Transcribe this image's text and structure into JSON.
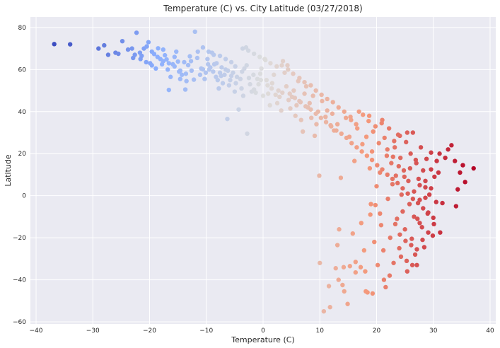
{
  "chart_data": {
    "type": "scatter",
    "title": "Temperature (C) vs. City Latitude (03/27/2018)",
    "xlabel": "Temperature (C)",
    "ylabel": "Latitude",
    "xlim": [
      -41,
      41
    ],
    "ylim": [
      -61,
      85
    ],
    "x_ticks": [
      -40,
      -30,
      -20,
      -10,
      0,
      10,
      20,
      30,
      40
    ],
    "y_ticks": [
      -60,
      -40,
      -20,
      0,
      20,
      40,
      60,
      80
    ],
    "grid": true,
    "colormap": "coolwarm",
    "background": "#eaeaf2",
    "grid_color": "#ffffff",
    "points": [
      [
        -36.8,
        72.1
      ],
      [
        -34,
        72
      ],
      [
        -29,
        70
      ],
      [
        -28,
        71.5
      ],
      [
        -27.3,
        67
      ],
      [
        -26,
        68
      ],
      [
        -25.5,
        67.5
      ],
      [
        -24.8,
        73.5
      ],
      [
        -23.8,
        69.5
      ],
      [
        -23.1,
        70
      ],
      [
        -22.9,
        65.5
      ],
      [
        -22.3,
        77.5
      ],
      [
        -21.7,
        68
      ],
      [
        -21.4,
        66.5
      ],
      [
        -21,
        70
      ],
      [
        -20.5,
        71
      ],
      [
        -20.2,
        73
      ],
      [
        -19.9,
        63
      ],
      [
        -19.6,
        68.5
      ],
      [
        -19.2,
        67.4
      ],
      [
        -18.9,
        60.5
      ],
      [
        -18.5,
        70.1
      ],
      [
        -18.1,
        65
      ],
      [
        -17.8,
        62.5
      ],
      [
        -17.6,
        69.5
      ],
      [
        -17.3,
        66.8
      ],
      [
        -17,
        64.8
      ],
      [
        -16.8,
        60
      ],
      [
        -16.6,
        50.3
      ],
      [
        -16.3,
        56.5
      ],
      [
        -15.9,
        62.5
      ],
      [
        -15.6,
        61.5
      ],
      [
        -15.3,
        68.5
      ],
      [
        -15,
        63.8
      ],
      [
        -14.8,
        59
      ],
      [
        -14.6,
        55.5
      ],
      [
        -14.3,
        57.5
      ],
      [
        -13.9,
        63.5
      ],
      [
        -13.7,
        50.5
      ],
      [
        -13.5,
        54.5
      ],
      [
        -13.2,
        62.1
      ],
      [
        -12.9,
        66.3
      ],
      [
        -12.6,
        59.5
      ],
      [
        -12.2,
        55.2
      ],
      [
        -12,
        78
      ],
      [
        -11.5,
        68.5
      ],
      [
        -11.1,
        57.5
      ],
      [
        -10.9,
        60.5
      ],
      [
        -10.6,
        60.1
      ],
      [
        -10.3,
        55.5
      ],
      [
        -10.1,
        58.5
      ],
      [
        -9.8,
        65
      ],
      [
        -9.5,
        60
      ],
      [
        -9.3,
        61
      ],
      [
        -9,
        68
      ],
      [
        -8.8,
        59
      ],
      [
        -8.6,
        62.5
      ],
      [
        -8.3,
        56.5
      ],
      [
        -8,
        55
      ],
      [
        -7.8,
        51
      ],
      [
        -7.6,
        58.5
      ],
      [
        -7.3,
        61
      ],
      [
        -7.1,
        53.5
      ],
      [
        -6.8,
        57.5
      ],
      [
        -6.6,
        60
      ],
      [
        -6.3,
        36.5
      ],
      [
        -6,
        52.5
      ],
      [
        -5.8,
        55
      ],
      [
        -5.6,
        57
      ],
      [
        -5.3,
        58.5
      ],
      [
        -5,
        49.5
      ],
      [
        -4.8,
        53.5
      ],
      [
        -4.6,
        56.5
      ],
      [
        -4.3,
        41
      ],
      [
        -4,
        55.5
      ],
      [
        -3.8,
        51
      ],
      [
        -3.5,
        47.5
      ],
      [
        -3.3,
        60.5
      ],
      [
        -3,
        70.5
      ],
      [
        -2.8,
        29.5
      ],
      [
        -2.5,
        56
      ],
      [
        -2.3,
        53
      ],
      [
        -2,
        49.5
      ],
      [
        -1.6,
        50.5
      ],
      [
        -1.3,
        49
      ],
      [
        -1,
        55.5
      ],
      [
        -0.8,
        53
      ],
      [
        -0.5,
        58
      ],
      [
        -0.3,
        60.5
      ],
      [
        0,
        47.5
      ],
      [
        0.3,
        65
      ],
      [
        0.6,
        55
      ],
      [
        0.9,
        48.5
      ],
      [
        1.2,
        43
      ],
      [
        1.5,
        51
      ],
      [
        1.9,
        57.5
      ],
      [
        2.2,
        48
      ],
      [
        2.5,
        44
      ],
      [
        2.9,
        47
      ],
      [
        3.2,
        40.5
      ],
      [
        3.5,
        64
      ],
      [
        3.8,
        58.5
      ],
      [
        4.1,
        52
      ],
      [
        4.3,
        62
      ],
      [
        4.5,
        45.5
      ],
      [
        4.8,
        41.5
      ],
      [
        5.1,
        47
      ],
      [
        5.4,
        50
      ],
      [
        5.7,
        38
      ],
      [
        5.9,
        43
      ],
      [
        6.2,
        54.5
      ],
      [
        6.4,
        45
      ],
      [
        6.7,
        36
      ],
      [
        7,
        30.5
      ],
      [
        7.3,
        48.5
      ],
      [
        7.6,
        52
      ],
      [
        7.9,
        42
      ],
      [
        8.2,
        44
      ],
      [
        8.5,
        37
      ],
      [
        8.8,
        47.5
      ],
      [
        9.1,
        28.5
      ],
      [
        9.4,
        34
      ],
      [
        9.7,
        40
      ],
      [
        9.9,
        9.5
      ],
      [
        10,
        -32
      ],
      [
        10.4,
        45
      ],
      [
        10.7,
        -55
      ],
      [
        11,
        37.5
      ],
      [
        11.3,
        40.5
      ],
      [
        11.6,
        -43
      ],
      [
        11.9,
        33.5
      ],
      [
        12.2,
        39
      ],
      [
        12.5,
        31
      ],
      [
        12.8,
        -34.5
      ],
      [
        13.1,
        34
      ],
      [
        13.4,
        -16
      ],
      [
        13.7,
        8.5
      ],
      [
        14,
        -42.5
      ],
      [
        14.3,
        -45.5
      ],
      [
        14.6,
        37
      ],
      [
        14.9,
        -51.5
      ],
      [
        15.2,
        28
      ],
      [
        15.5,
        36
      ],
      [
        15.8,
        -18
      ],
      [
        16.1,
        16.5
      ],
      [
        16.3,
        -31.5
      ],
      [
        16.6,
        32
      ],
      [
        16.9,
        40
      ],
      [
        17.2,
        -34
      ],
      [
        17.5,
        24.5
      ],
      [
        17.8,
        -26
      ],
      [
        18,
        -36
      ],
      [
        18.2,
        28
      ],
      [
        18.4,
        -46
      ],
      [
        18.6,
        35.5
      ],
      [
        18.8,
        13
      ],
      [
        19,
        -4
      ],
      [
        19.2,
        21
      ],
      [
        19.4,
        30.5
      ],
      [
        19.6,
        -22
      ],
      [
        19.8,
        33
      ],
      [
        20,
        4.5
      ],
      [
        20.2,
        -33
      ],
      [
        20.4,
        25
      ],
      [
        20.6,
        11
      ],
      [
        20.8,
        -14
      ],
      [
        21,
        36
      ],
      [
        21.2,
        -26
      ],
      [
        21.4,
        27.5
      ],
      [
        21.6,
        -43.5
      ],
      [
        21.8,
        19
      ],
      [
        22,
        -1.5
      ],
      [
        22.2,
        32
      ],
      [
        22.4,
        -20
      ],
      [
        22.6,
        15.5
      ],
      [
        22.8,
        5.5
      ],
      [
        23,
        -32
      ],
      [
        23.2,
        23
      ],
      [
        23.4,
        9.5
      ],
      [
        23.6,
        -11
      ],
      [
        23.8,
        29
      ],
      [
        24,
        -25
      ],
      [
        24.2,
        18
      ],
      [
        24.4,
        0.5
      ],
      [
        24.6,
        -7.5
      ],
      [
        24.8,
        12
      ],
      [
        25,
        -16
      ],
      [
        25.2,
        25.5
      ],
      [
        25.4,
        -36
      ],
      [
        25.6,
        7
      ],
      [
        25.8,
        -4
      ],
      [
        26,
        20
      ],
      [
        26.2,
        -20.5
      ],
      [
        26.4,
        30
      ],
      [
        26.6,
        2
      ],
      [
        26.8,
        -28
      ],
      [
        27,
        15.5
      ],
      [
        27.2,
        -11
      ],
      [
        27.4,
        8
      ],
      [
        27.6,
        -2
      ],
      [
        27.8,
        23
      ],
      [
        28,
        -15
      ],
      [
        28.2,
        12
      ],
      [
        28.4,
        -24.5
      ],
      [
        28.6,
        4
      ],
      [
        28.8,
        17.5
      ],
      [
        29,
        -8.5
      ],
      [
        29.3,
        0.5
      ],
      [
        29.6,
        20.5
      ],
      [
        29.9,
        -19
      ],
      [
        30.2,
        9
      ],
      [
        30.5,
        -3
      ],
      [
        30.9,
        11
      ],
      [
        31.2,
        -17.5
      ],
      [
        31.6,
        -3.5
      ],
      [
        32.1,
        18
      ],
      [
        32.6,
        22
      ],
      [
        33.2,
        24
      ],
      [
        33.8,
        16.5
      ],
      [
        34,
        -5
      ],
      [
        34.3,
        3
      ],
      [
        34.7,
        11
      ],
      [
        35.2,
        14.5
      ],
      [
        35.6,
        6.5
      ],
      [
        37.1,
        13
      ],
      [
        -9.7,
        62.5
      ],
      [
        -8.2,
        63
      ],
      [
        -7.4,
        57
      ],
      [
        -6.2,
        59.5
      ],
      [
        -4.9,
        61.5
      ],
      [
        -3.7,
        59
      ],
      [
        -2.9,
        62
      ],
      [
        -1.7,
        57.5
      ],
      [
        -0.4,
        55
      ],
      [
        0.8,
        52.5
      ],
      [
        1.6,
        53.5
      ],
      [
        2.7,
        50
      ],
      [
        3.4,
        49
      ],
      [
        4.7,
        48.5
      ],
      [
        5.6,
        46.5
      ],
      [
        6.6,
        44.5
      ],
      [
        7.5,
        42.5
      ],
      [
        8.4,
        41
      ],
      [
        9.3,
        39
      ],
      [
        10.2,
        37
      ],
      [
        11.1,
        35
      ],
      [
        12,
        33
      ],
      [
        12.9,
        31
      ],
      [
        13.8,
        29.5
      ],
      [
        14.7,
        27.5
      ],
      [
        15.6,
        25
      ],
      [
        16.5,
        23
      ],
      [
        17.4,
        21
      ],
      [
        18.3,
        19
      ],
      [
        19.2,
        17
      ],
      [
        20.1,
        14.5
      ],
      [
        21,
        12.5
      ],
      [
        21.9,
        10
      ],
      [
        22.8,
        8
      ],
      [
        23.7,
        6
      ],
      [
        24.6,
        3.5
      ],
      [
        25.5,
        1
      ],
      [
        26.4,
        -1.5
      ],
      [
        27.3,
        -3.5
      ],
      [
        28.2,
        -6
      ],
      [
        29.1,
        -8
      ],
      [
        30,
        -10.5
      ],
      [
        24.3,
        -29
      ],
      [
        25.3,
        -31
      ],
      [
        26.3,
        -33
      ],
      [
        27.1,
        -33
      ],
      [
        22.3,
        -38
      ],
      [
        21.3,
        -40
      ],
      [
        19.3,
        -46.5
      ],
      [
        18.1,
        -45.5
      ],
      [
        16.3,
        -36.5
      ],
      [
        15.3,
        -33.5
      ],
      [
        14.2,
        -34
      ],
      [
        13.3,
        -40
      ],
      [
        11.8,
        -53
      ],
      [
        13.1,
        -23.5
      ],
      [
        17.3,
        -13
      ],
      [
        18.9,
        -9
      ],
      [
        19.8,
        -4.5
      ],
      [
        20.6,
        -8.5
      ],
      [
        23.3,
        -13.5
      ],
      [
        24.1,
        -18.5
      ],
      [
        25.1,
        -21.5
      ],
      [
        26.1,
        -23.5
      ],
      [
        27.1,
        -25.5
      ],
      [
        28.1,
        -21
      ],
      [
        29.1,
        -17.5
      ],
      [
        30.1,
        -13.5
      ],
      [
        26.6,
        -10
      ],
      [
        27.6,
        -13
      ],
      [
        28.6,
        -1
      ],
      [
        29.6,
        3.5
      ],
      [
        27.6,
        5
      ],
      [
        28.6,
        7
      ],
      [
        29.6,
        12.5
      ],
      [
        30.6,
        16.5
      ],
      [
        31.1,
        20
      ],
      [
        26.9,
        17
      ],
      [
        25.9,
        13
      ],
      [
        24.9,
        9
      ],
      [
        23.9,
        14
      ],
      [
        22.9,
        18.5
      ],
      [
        21.9,
        22
      ],
      [
        23.1,
        26
      ],
      [
        24.1,
        28.5
      ],
      [
        25.4,
        30
      ],
      [
        20.9,
        34.5
      ],
      [
        18.7,
        38
      ],
      [
        17.6,
        38.5
      ],
      [
        16.4,
        34
      ],
      [
        15.4,
        37.5
      ],
      [
        14.3,
        40
      ],
      [
        13.3,
        42
      ],
      [
        12.3,
        44.5
      ],
      [
        11.3,
        46
      ],
      [
        10.3,
        48
      ],
      [
        9.3,
        50
      ],
      [
        8.4,
        52.5
      ],
      [
        7.3,
        54
      ],
      [
        6.4,
        56
      ],
      [
        5.3,
        58
      ],
      [
        4.4,
        60
      ],
      [
        3.3,
        62
      ],
      [
        2.4,
        61.5
      ],
      [
        1.3,
        63
      ],
      [
        0.4,
        64.5
      ],
      [
        -0.6,
        66
      ],
      [
        -1.6,
        67.5
      ],
      [
        -2.6,
        69
      ],
      [
        -3.6,
        70
      ],
      [
        -5.6,
        63.5
      ],
      [
        -6.6,
        65
      ],
      [
        -7.6,
        66.5
      ],
      [
        -8.7,
        67
      ],
      [
        -9.6,
        68.5
      ],
      [
        -10.6,
        70.5
      ],
      [
        -11.6,
        65.5
      ],
      [
        -12.7,
        64
      ],
      [
        -13.6,
        58
      ],
      [
        -14.6,
        59.5
      ],
      [
        -15.6,
        66
      ],
      [
        -16.6,
        63
      ],
      [
        -17.6,
        64
      ],
      [
        -18.6,
        66
      ],
      [
        -19.6,
        62
      ],
      [
        -20.6,
        63.5
      ],
      [
        -21.6,
        65
      ],
      [
        -22.6,
        67
      ]
    ]
  }
}
